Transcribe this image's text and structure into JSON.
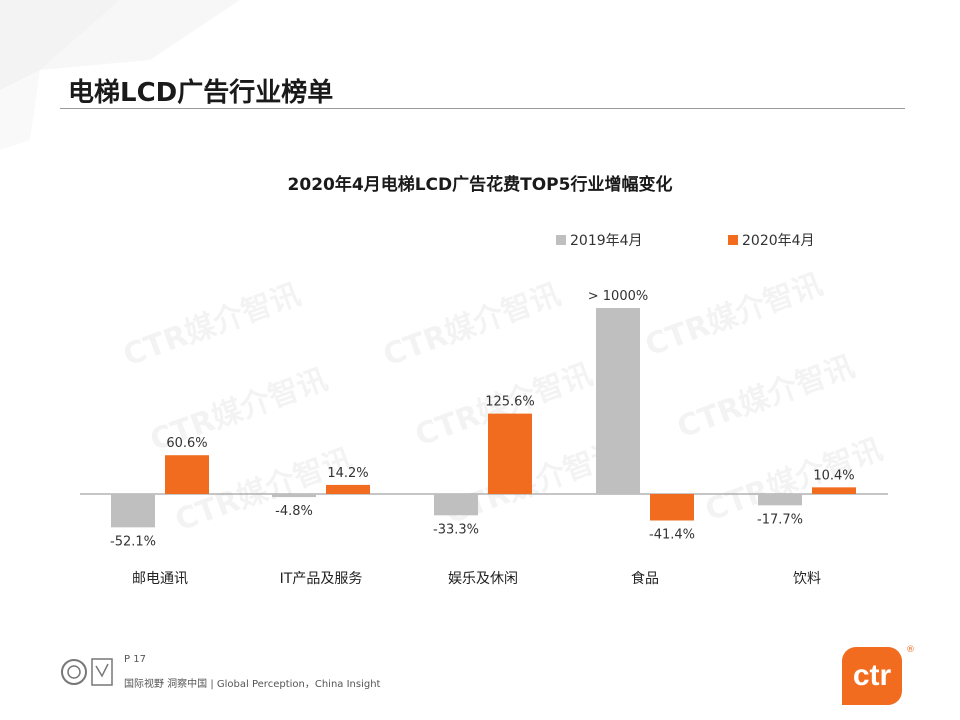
{
  "page": {
    "title": "电梯LCD广告行业榜单",
    "page_number": "P 17",
    "footer_text": "国际视野 洞察中国 | Global Perception，China Insight",
    "logo_text": "ctr",
    "logo_reg": "®",
    "watermark_text": "CTR媒介智讯"
  },
  "colors": {
    "series_2019": "#bfbfbf",
    "series_2020": "#f26c1f",
    "accent": "#f26c1f"
  },
  "chart_data": {
    "type": "bar",
    "title": "2020年4月电梯LCD广告花费TOP5行业增幅变化",
    "categories": [
      "邮电通讯",
      "IT产品及服务",
      "娱乐及休闲",
      "食品",
      "饮料"
    ],
    "series": [
      {
        "name": "2019年4月",
        "values": [
          -52.1,
          -4.8,
          -33.3,
          null,
          -17.7
        ],
        "labels": [
          "-52.1%",
          "-4.8%",
          "-33.3%",
          "> 1000%",
          "-17.7%"
        ]
      },
      {
        "name": "2020年4月",
        "values": [
          60.6,
          14.2,
          125.6,
          -41.4,
          10.4
        ],
        "labels": [
          "60.6%",
          "14.2%",
          "125.6%",
          "-41.4%",
          "10.4%"
        ]
      }
    ],
    "legend_position": "top-right",
    "grid": false
  }
}
